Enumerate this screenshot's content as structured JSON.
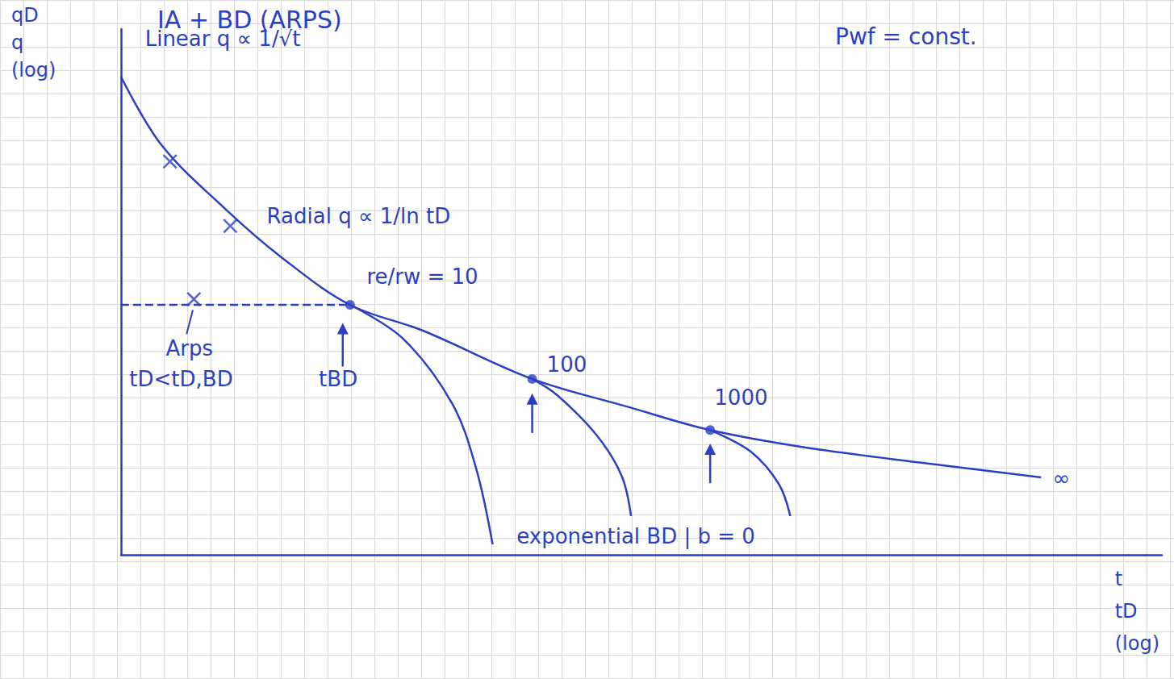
{
  "chart_data": {
    "type": "line",
    "title": "IA + BD (ARPS)",
    "subtitle": "Pwf = const.",
    "xlabel": [
      "t",
      "tD",
      "(log)"
    ],
    "ylabel": [
      "qD",
      "q",
      "(log)"
    ],
    "xlim": [
      0,
      100
    ],
    "ylim": [
      0,
      110
    ],
    "xticks": [],
    "yticks": [],
    "tick_labels": false,
    "color": "#2b3fc4",
    "series": [
      {
        "type": "line",
        "line_style": "solid",
        "marker": "none",
        "x": [
          0,
          3.9,
          10.1,
          15.5,
          22.0,
          29.0,
          39.5,
          48.8,
          56.6,
          65.9,
          77.5,
          88.4
        ],
        "values": [
          100,
          85.7,
          72.2,
          62.1,
          52.3,
          46.9,
          36.8,
          30.9,
          26.1,
          22.4,
          19.1,
          16.2
        ]
      },
      {
        "type": "line",
        "line_style": "solid",
        "marker": "none",
        "x": [
          22.0,
          27.1,
          31.8,
          34.1,
          35.7
        ],
        "values": [
          52.3,
          45.2,
          31.7,
          18.2,
          2.2
        ]
      },
      {
        "type": "line",
        "line_style": "solid",
        "marker": "none",
        "x": [
          39.5,
          41.9,
          45.7,
          48.1,
          49.0
        ],
        "values": [
          36.8,
          33.4,
          25.0,
          16.5,
          8.1
        ]
      },
      {
        "type": "line",
        "line_style": "solid",
        "marker": "none",
        "x": [
          56.6,
          60.5,
          63.2,
          64.3
        ],
        "values": [
          26.1,
          21.6,
          14.8,
          8.1
        ]
      },
      {
        "type": "line",
        "line_style": "dashed",
        "marker": "none",
        "x": [
          0,
          22.0
        ],
        "values": [
          52.3,
          52.3
        ]
      },
      {
        "type": "scatter",
        "marker": "circle",
        "x": [
          22.0,
          39.5,
          56.6
        ],
        "values": [
          52.3,
          36.8,
          26.1
        ]
      },
      {
        "type": "scatter",
        "marker": "cross",
        "x": [
          4.7,
          10.5,
          7.0
        ],
        "values": [
          82.3,
          68.8,
          53.5
        ]
      }
    ],
    "annotations": [
      {
        "text": "Linear q ∝ 1/√t",
        "x": 2.3,
        "y": 107.9
      },
      {
        "text": "Radial q ∝ 1/ln tD",
        "x": 14.0,
        "y": 70.8
      },
      {
        "text": "re/rw = 10",
        "x": 23.6,
        "y": 58.2
      },
      {
        "text": "Arps",
        "x": 4.3,
        "y": 43.2
      },
      {
        "text": "tD<tD,BD",
        "x": 0.8,
        "y": 36.8
      },
      {
        "text": "tBD",
        "x": 19.0,
        "y": 36.8
      },
      {
        "text": "100",
        "x": 40.9,
        "y": 39.8
      },
      {
        "text": "1000",
        "x": 57.0,
        "y": 32.9
      },
      {
        "text": "∞",
        "x": 89.5,
        "y": 16.0
      },
      {
        "text": "exponential BD | b = 0",
        "x": 38.0,
        "y": 3.9
      }
    ]
  }
}
